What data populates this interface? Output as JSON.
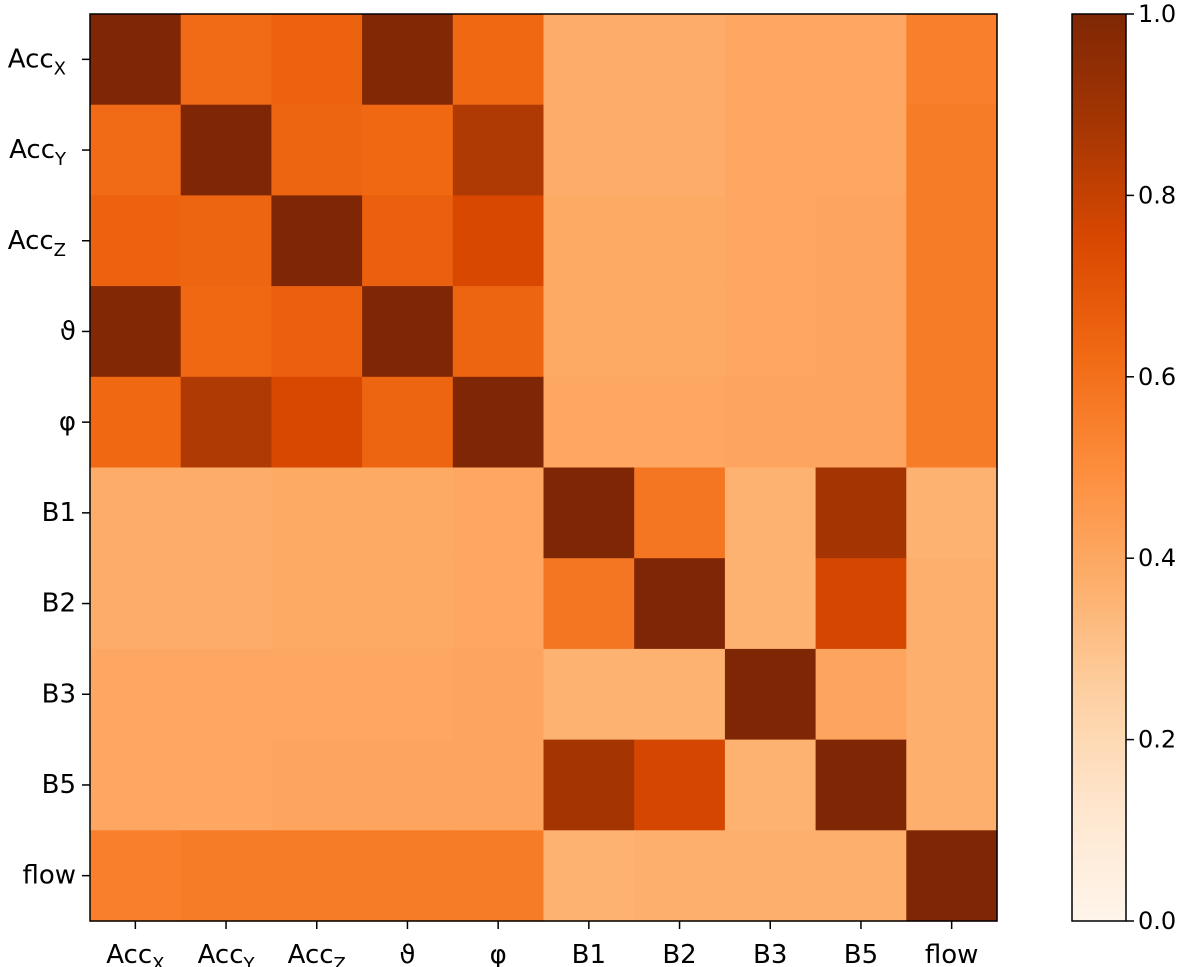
{
  "chart_data": {
    "type": "heatmap",
    "title": "",
    "xlabel": "",
    "ylabel": "",
    "labels": [
      {
        "main": "Acc",
        "sub": "X"
      },
      {
        "main": "Acc",
        "sub": "Y"
      },
      {
        "main": "Acc",
        "sub": "Z"
      },
      {
        "main": "ϑ",
        "sub": ""
      },
      {
        "main": "φ",
        "sub": ""
      },
      {
        "main": "B1",
        "sub": ""
      },
      {
        "main": "B2",
        "sub": ""
      },
      {
        "main": "B3",
        "sub": ""
      },
      {
        "main": "B5",
        "sub": ""
      },
      {
        "main": "flow",
        "sub": ""
      }
    ],
    "matrix": [
      [
        1.0,
        0.62,
        0.65,
        0.99,
        0.63,
        0.38,
        0.38,
        0.4,
        0.4,
        0.55
      ],
      [
        0.62,
        1.0,
        0.64,
        0.63,
        0.85,
        0.38,
        0.38,
        0.4,
        0.4,
        0.56
      ],
      [
        0.65,
        0.64,
        1.0,
        0.66,
        0.75,
        0.39,
        0.39,
        0.4,
        0.41,
        0.56
      ],
      [
        0.99,
        0.63,
        0.66,
        1.0,
        0.64,
        0.39,
        0.39,
        0.4,
        0.41,
        0.56
      ],
      [
        0.63,
        0.85,
        0.75,
        0.64,
        1.0,
        0.4,
        0.4,
        0.41,
        0.41,
        0.56
      ],
      [
        0.38,
        0.38,
        0.39,
        0.39,
        0.4,
        1.0,
        0.58,
        0.36,
        0.88,
        0.36
      ],
      [
        0.38,
        0.38,
        0.39,
        0.39,
        0.4,
        0.58,
        1.0,
        0.36,
        0.76,
        0.37
      ],
      [
        0.4,
        0.4,
        0.4,
        0.4,
        0.41,
        0.36,
        0.36,
        1.0,
        0.41,
        0.37
      ],
      [
        0.4,
        0.4,
        0.41,
        0.41,
        0.41,
        0.88,
        0.76,
        0.36,
        1.0,
        0.37
      ],
      [
        0.55,
        0.56,
        0.56,
        0.56,
        0.56,
        0.36,
        0.37,
        0.37,
        0.37,
        1.0
      ]
    ],
    "colormap": "Oranges",
    "colors": [
      "#fff5eb",
      "#fee6ce",
      "#fdd0a2",
      "#fdae6b",
      "#fd8d3c",
      "#f16913",
      "#d94801",
      "#a63603",
      "#7f2704"
    ],
    "colorbar": {
      "min": 0.0,
      "max": 1.0,
      "ticks": [
        0.0,
        0.2,
        0.4,
        0.6,
        0.8,
        1.0
      ],
      "tick_labels": [
        "0.0",
        "0.2",
        "0.4",
        "0.6",
        "0.8",
        "1.0"
      ]
    }
  }
}
